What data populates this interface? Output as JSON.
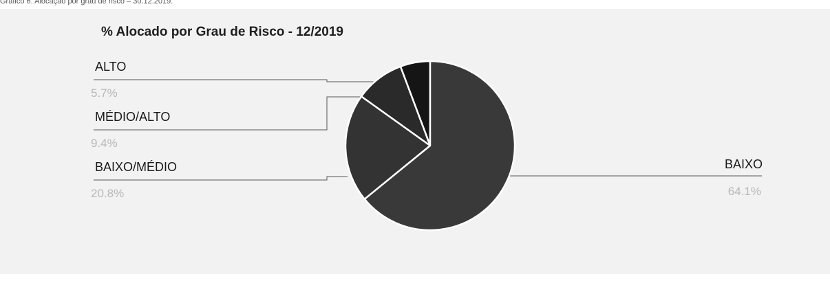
{
  "caption": "Gráfico 6: Alocação por grau de risco – 30.12.2019.",
  "chart_data": {
    "type": "pie",
    "title": "% Alocado por Grau de Risco - 12/2019",
    "slices": [
      {
        "label": "ALTO",
        "value": 5.7,
        "value_label": "5.7%",
        "color": "#151515"
      },
      {
        "label": "MÉDIO/ALTO",
        "value": 9.4,
        "value_label": "9.4%",
        "color": "#2a2a2a"
      },
      {
        "label": "BAIXO/MÉDIO",
        "value": 20.8,
        "value_label": "20.8%",
        "color": "#333333"
      },
      {
        "label": "BAIXO",
        "value": 64.1,
        "value_label": "64.1%",
        "color": "#393939"
      }
    ],
    "legend": "leader-line labels"
  }
}
